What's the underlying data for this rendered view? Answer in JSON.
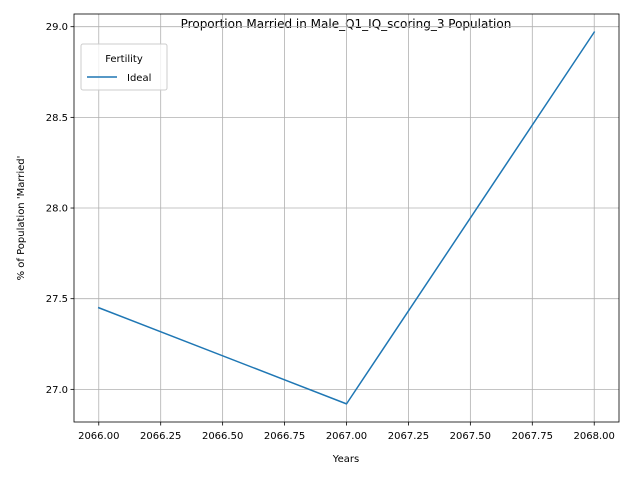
{
  "chart_data": {
    "type": "line",
    "title": "Proportion Married in Male_Q1_IQ_scoring_3 Population",
    "xlabel": "Years",
    "ylabel": "% of Population 'Married'",
    "x": [
      2066,
      2067,
      2068
    ],
    "series": [
      {
        "name": "Ideal",
        "values": [
          27.45,
          26.92,
          28.97
        ],
        "color": "#1f77b4"
      }
    ],
    "xlim": [
      2065.9,
      2068.1
    ],
    "ylim": [
      26.82,
      29.07
    ],
    "xticks": [
      2066.0,
      2066.25,
      2066.5,
      2066.75,
      2067.0,
      2067.25,
      2067.5,
      2067.75,
      2068.0
    ],
    "xtick_labels": [
      "2066.00",
      "2066.25",
      "2066.50",
      "2066.75",
      "2067.00",
      "2067.25",
      "2067.50",
      "2067.75",
      "2068.00"
    ],
    "yticks": [
      27.0,
      27.5,
      28.0,
      28.5,
      29.0
    ],
    "ytick_labels": [
      "27.0",
      "27.5",
      "28.0",
      "28.5",
      "29.0"
    ],
    "grid": true,
    "legend": {
      "title": "Fertility",
      "placement": "top-left"
    }
  }
}
